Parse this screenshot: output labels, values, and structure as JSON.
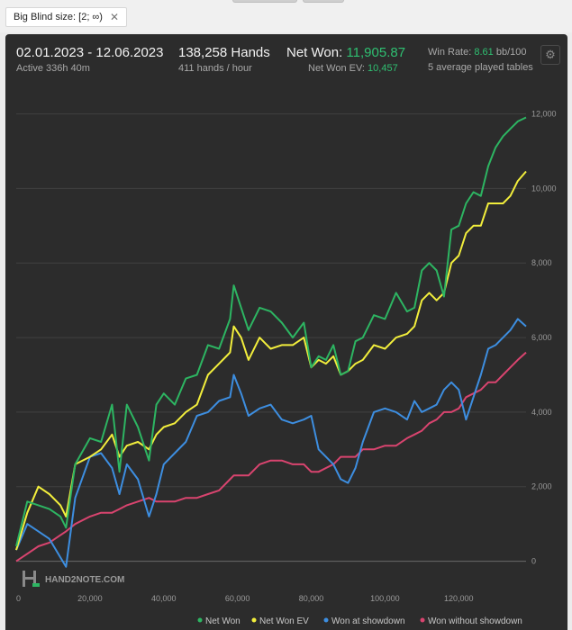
{
  "filter": {
    "label": "Big Blind size: [2; ∞)",
    "close_glyph": "✕"
  },
  "header": {
    "date_range": "02.01.2023 - 12.06.2023",
    "active": "Active 336h 40m",
    "hands": "138,258 Hands",
    "hands_per_hour": "411 hands / hour",
    "net_won_label": "Net Won:",
    "net_won_value": "11,905.87",
    "net_won_ev_label": "Net Won  EV:",
    "net_won_ev_value": "10,457",
    "win_rate_label": "Win Rate:",
    "win_rate_value": "8.61",
    "win_rate_unit": "bb/100",
    "tables": "5 average played tables"
  },
  "watermark": "HAND2NOTE.COM",
  "colors": {
    "net_won": "#2db562",
    "net_won_ev": "#f2ee3c",
    "showdown": "#3d8ee0",
    "non_showdown": "#d9446f",
    "panel": "#2c2c2c",
    "accent_green": "#2fbf71"
  },
  "icons": {
    "settings": "gear-icon",
    "logo": "h2n-logo-icon"
  },
  "chart_data": {
    "type": "line",
    "xlim": [
      0,
      138258
    ],
    "ylim": [
      -300,
      12400
    ],
    "x_ticks": [
      0,
      20000,
      40000,
      60000,
      80000,
      100000,
      120000
    ],
    "x_tick_labels": [
      "0",
      "20,000",
      "40,000",
      "60,000",
      "80,000",
      "100,000",
      "120,000"
    ],
    "y_ticks": [
      0,
      2000,
      4000,
      6000,
      8000,
      10000,
      12000
    ],
    "y_tick_labels": [
      "0",
      "2,000",
      "4,000",
      "6,000",
      "8,000",
      "10,000",
      "12,000"
    ],
    "grid": true,
    "legend_position": "bottom-right",
    "series": [
      {
        "name": "Net Won",
        "color": "#2db562",
        "x": [
          0,
          3000,
          6000,
          9000,
          12000,
          13500,
          16000,
          20000,
          23000,
          26000,
          28000,
          30000,
          33000,
          36000,
          38000,
          40000,
          43000,
          46000,
          49000,
          52000,
          55000,
          58000,
          59000,
          61000,
          63000,
          66000,
          69000,
          72000,
          75000,
          78000,
          80000,
          82000,
          84000,
          86000,
          88000,
          90000,
          92000,
          94000,
          97000,
          100000,
          103000,
          106000,
          108000,
          110000,
          112000,
          114000,
          116000,
          118000,
          120000,
          122000,
          124000,
          126000,
          128000,
          130000,
          132000,
          134000,
          136000,
          138258
        ],
        "y": [
          400,
          1600,
          1500,
          1400,
          1200,
          900,
          2600,
          3300,
          3200,
          4200,
          2400,
          4200,
          3600,
          2700,
          4200,
          4500,
          4200,
          4900,
          5000,
          5800,
          5700,
          6500,
          7400,
          6800,
          6200,
          6800,
          6700,
          6400,
          6000,
          6400,
          5200,
          5500,
          5400,
          5800,
          5000,
          5100,
          5900,
          6000,
          6600,
          6500,
          7200,
          6700,
          6800,
          7800,
          8000,
          7800,
          7100,
          8900,
          9000,
          9600,
          9900,
          9800,
          10600,
          11100,
          11400,
          11600,
          11800,
          11906
        ]
      },
      {
        "name": "Net Won  EV",
        "color": "#f2ee3c",
        "x": [
          0,
          3000,
          6000,
          9000,
          12000,
          13500,
          16000,
          20000,
          23000,
          26000,
          28000,
          30000,
          33000,
          36000,
          38000,
          40000,
          43000,
          46000,
          49000,
          52000,
          55000,
          58000,
          59000,
          61000,
          63000,
          66000,
          69000,
          72000,
          75000,
          78000,
          80000,
          82000,
          84000,
          86000,
          88000,
          90000,
          92000,
          94000,
          97000,
          100000,
          103000,
          106000,
          108000,
          110000,
          112000,
          114000,
          116000,
          118000,
          120000,
          122000,
          124000,
          126000,
          128000,
          130000,
          132000,
          134000,
          136000,
          138258
        ],
        "y": [
          300,
          1300,
          2000,
          1800,
          1500,
          1200,
          2600,
          2800,
          3000,
          3400,
          2800,
          3100,
          3200,
          3000,
          3400,
          3600,
          3700,
          4000,
          4200,
          5000,
          5300,
          5600,
          6300,
          6000,
          5400,
          6000,
          5700,
          5800,
          5800,
          6000,
          5200,
          5400,
          5300,
          5500,
          5000,
          5100,
          5300,
          5400,
          5800,
          5700,
          6000,
          6100,
          6300,
          7000,
          7200,
          7000,
          7200,
          8000,
          8200,
          8800,
          9000,
          9000,
          9600,
          9600,
          9600,
          9800,
          10200,
          10457
        ]
      },
      {
        "name": "Won at showdown",
        "color": "#3d8ee0",
        "x": [
          0,
          3000,
          6000,
          9000,
          12000,
          13500,
          16000,
          20000,
          23000,
          26000,
          28000,
          30000,
          33000,
          36000,
          38000,
          40000,
          43000,
          46000,
          49000,
          52000,
          55000,
          58000,
          59000,
          61000,
          63000,
          66000,
          69000,
          72000,
          75000,
          78000,
          80000,
          82000,
          84000,
          86000,
          88000,
          90000,
          92000,
          94000,
          97000,
          100000,
          103000,
          106000,
          108000,
          110000,
          112000,
          114000,
          116000,
          118000,
          120000,
          122000,
          124000,
          126000,
          128000,
          130000,
          132000,
          134000,
          136000,
          138258
        ],
        "y": [
          300,
          1000,
          800,
          600,
          100,
          -150,
          1700,
          2800,
          2900,
          2500,
          1800,
          2600,
          2200,
          1200,
          1800,
          2600,
          2900,
          3200,
          3900,
          4000,
          4300,
          4400,
          5000,
          4500,
          3900,
          4100,
          4200,
          3800,
          3700,
          3800,
          3900,
          3000,
          2800,
          2600,
          2200,
          2100,
          2500,
          3200,
          4000,
          4100,
          4000,
          3800,
          4300,
          4000,
          4100,
          4200,
          4600,
          4800,
          4600,
          3800,
          4400,
          5000,
          5700,
          5800,
          6000,
          6200,
          6500,
          6300
        ]
      },
      {
        "name": "Won without showdown",
        "color": "#d9446f",
        "x": [
          0,
          3000,
          6000,
          9000,
          12000,
          13500,
          16000,
          20000,
          23000,
          26000,
          28000,
          30000,
          33000,
          36000,
          38000,
          40000,
          43000,
          46000,
          49000,
          52000,
          55000,
          58000,
          59000,
          61000,
          63000,
          66000,
          69000,
          72000,
          75000,
          78000,
          80000,
          82000,
          84000,
          86000,
          88000,
          90000,
          92000,
          94000,
          97000,
          100000,
          103000,
          106000,
          108000,
          110000,
          112000,
          114000,
          116000,
          118000,
          120000,
          122000,
          124000,
          126000,
          128000,
          130000,
          132000,
          134000,
          136000,
          138258
        ],
        "y": [
          0,
          200,
          400,
          500,
          700,
          800,
          1000,
          1200,
          1300,
          1300,
          1400,
          1500,
          1600,
          1700,
          1600,
          1600,
          1600,
          1700,
          1700,
          1800,
          1900,
          2200,
          2300,
          2300,
          2300,
          2600,
          2700,
          2700,
          2600,
          2600,
          2400,
          2400,
          2500,
          2600,
          2800,
          2800,
          2800,
          3000,
          3000,
          3100,
          3100,
          3300,
          3400,
          3500,
          3700,
          3800,
          4000,
          4000,
          4100,
          4400,
          4500,
          4600,
          4800,
          4800,
          5000,
          5200,
          5400,
          5600
        ]
      }
    ]
  }
}
